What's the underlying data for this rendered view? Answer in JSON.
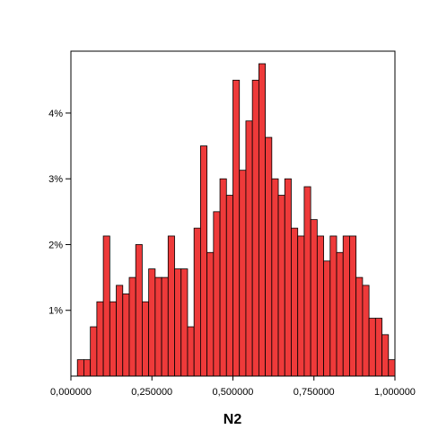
{
  "chart_data": {
    "type": "bar",
    "title": "",
    "xlabel": "N2",
    "ylabel": "",
    "xlim": [
      0,
      1
    ],
    "ylim": [
      0,
      4.75
    ],
    "grid": false,
    "bar_color": "#ee3a3a",
    "bar_edge_color": "#000000",
    "bin_width": 0.02,
    "x_bin_starts": [
      0.02,
      0.04,
      0.06,
      0.08,
      0.1,
      0.12,
      0.14,
      0.16,
      0.18,
      0.2,
      0.22,
      0.24,
      0.26,
      0.28,
      0.3,
      0.32,
      0.34,
      0.36,
      0.38,
      0.4,
      0.42,
      0.44,
      0.46,
      0.48,
      0.5,
      0.52,
      0.54,
      0.56,
      0.58,
      0.6,
      0.62,
      0.64,
      0.66,
      0.68,
      0.7,
      0.72,
      0.74,
      0.76,
      0.78,
      0.8,
      0.82,
      0.84,
      0.86,
      0.88,
      0.9,
      0.92,
      0.94,
      0.96,
      0.98
    ],
    "values": [
      0.25,
      0.25,
      0.75,
      1.13,
      2.13,
      1.13,
      1.38,
      1.25,
      1.5,
      2.0,
      1.13,
      1.63,
      1.5,
      1.5,
      2.13,
      1.63,
      1.63,
      0.75,
      2.25,
      3.5,
      1.88,
      2.5,
      3.0,
      2.75,
      4.5,
      3.13,
      3.88,
      4.5,
      4.75,
      3.63,
      3.0,
      2.75,
      3.0,
      2.25,
      2.13,
      2.88,
      2.38,
      2.13,
      1.75,
      2.13,
      1.88,
      2.13,
      2.13,
      1.5,
      1.38,
      0.88,
      0.88,
      0.63,
      0.25
    ],
    "x_ticks": [
      0,
      0.25,
      0.5,
      0.75,
      1.0
    ],
    "x_tick_labels": [
      "0,000000",
      "0,250000",
      "0,500000",
      "0,750000",
      "1,000000"
    ],
    "y_ticks": [
      1,
      2,
      3,
      4
    ],
    "y_tick_labels": [
      "1%",
      "2%",
      "3%",
      "4%"
    ]
  }
}
